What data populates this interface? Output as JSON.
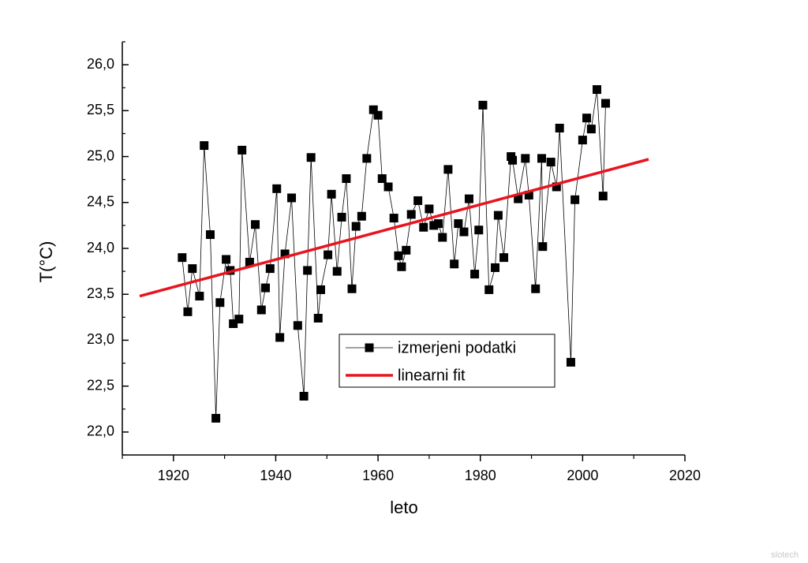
{
  "chart_data": {
    "type": "line",
    "xlabel": "leto",
    "ylabel": "T(°C)",
    "xlim": [
      1910,
      2020
    ],
    "ylim": [
      21.75,
      26.25
    ],
    "xticks": [
      1920,
      1940,
      1960,
      1980,
      2000,
      2020
    ],
    "xminor_ticks": [
      1910,
      1930,
      1950,
      1970,
      1990,
      2010
    ],
    "yticks": [
      {
        "value": 22.0,
        "label": "22,0"
      },
      {
        "value": 22.5,
        "label": "22,5"
      },
      {
        "value": 23.0,
        "label": "23,0"
      },
      {
        "value": 23.5,
        "label": "23,5"
      },
      {
        "value": 24.0,
        "label": "24,0"
      },
      {
        "value": 24.5,
        "label": "24,5"
      },
      {
        "value": 25.0,
        "label": "25,0"
      },
      {
        "value": 25.5,
        "label": "25,5"
      },
      {
        "value": 26.0,
        "label": "26,0"
      }
    ],
    "yminor_ticks": [
      21.75,
      22.25,
      22.75,
      23.25,
      23.75,
      24.25,
      24.75,
      25.25,
      25.75,
      26.25
    ],
    "legend": "center",
    "series": [
      {
        "name": "izmerjeni podatki",
        "color": "#000000",
        "marker": "square",
        "x": [
          1921.7,
          1922.8,
          1923.7,
          1925.1,
          1926.0,
          1927.2,
          1928.3,
          1929.1,
          1930.3,
          1931.1,
          1931.7,
          1932.8,
          1933.4,
          1934.9,
          1936.0,
          1937.2,
          1938.0,
          1938.9,
          1940.2,
          1940.8,
          1941.8,
          1943.1,
          1944.3,
          1945.5,
          1946.2,
          1946.9,
          1948.3,
          1948.8,
          1950.2,
          1950.9,
          1952.0,
          1952.9,
          1953.8,
          1954.9,
          1955.7,
          1956.8,
          1957.8,
          1959.1,
          1960.0,
          1960.8,
          1962.0,
          1963.1,
          1964.0,
          1964.6,
          1965.5,
          1966.5,
          1967.8,
          1968.9,
          1970.0,
          1970.9,
          1971.8,
          1972.6,
          1973.7,
          1974.9,
          1975.7,
          1976.8,
          1977.8,
          1978.9,
          1979.7,
          1980.5,
          1981.7,
          1982.9,
          1983.5,
          1984.6,
          1986.0,
          1986.3,
          1987.4,
          1988.8,
          1989.5,
          1990.8,
          1992.0,
          1992.2,
          1993.8,
          1994.9,
          1995.5,
          1997.7,
          1998.5,
          2000.0,
          2000.8,
          2001.7,
          2002.8,
          2004.0,
          2004.5
        ],
        "values": [
          23.9,
          23.31,
          23.78,
          23.48,
          25.12,
          24.15,
          22.15,
          23.41,
          23.88,
          23.76,
          23.18,
          23.23,
          25.07,
          23.85,
          24.26,
          23.33,
          23.57,
          23.78,
          24.65,
          23.03,
          23.94,
          24.55,
          23.16,
          22.39,
          23.76,
          24.99,
          23.24,
          23.55,
          23.93,
          24.59,
          23.75,
          24.34,
          24.76,
          23.56,
          24.24,
          24.35,
          24.98,
          25.51,
          25.45,
          24.76,
          24.67,
          24.33,
          23.92,
          23.8,
          23.98,
          24.37,
          24.52,
          24.23,
          24.43,
          24.25,
          24.27,
          24.12,
          24.86,
          23.83,
          24.27,
          24.18,
          24.54,
          23.72,
          24.2,
          25.56,
          23.55,
          23.79,
          24.36,
          23.9,
          25.0,
          24.96,
          24.54,
          24.98,
          24.58,
          23.56,
          24.98,
          24.02,
          24.94,
          24.67,
          25.31,
          22.76,
          24.53,
          25.18,
          25.42,
          25.3,
          25.73,
          24.57,
          25.58
        ]
      },
      {
        "name": "linearni fit",
        "color": "#e8141e",
        "marker": "none",
        "x": [
          1913.4,
          2012.9
        ],
        "values": [
          23.48,
          24.97
        ]
      }
    ],
    "watermark": "slotech"
  }
}
